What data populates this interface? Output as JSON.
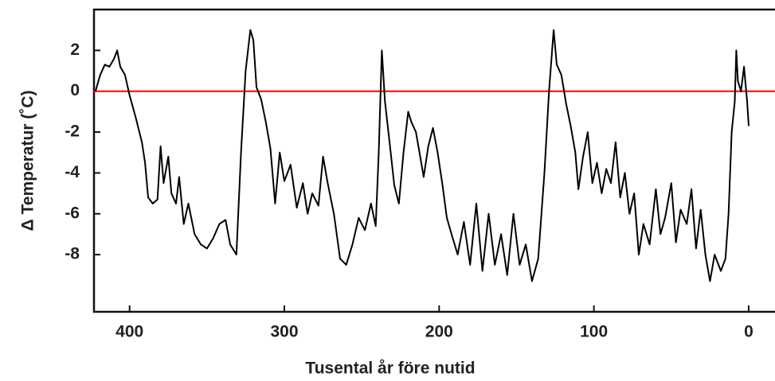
{
  "chart_data": {
    "type": "line",
    "xlabel": "Tusental år före nutid",
    "ylabel": "Δ Temperatur  (˚C)",
    "xlim": [
      423,
      -17
    ],
    "ylim": [
      -10.8,
      4
    ],
    "xticks": [
      400,
      300,
      200,
      100,
      0
    ],
    "yticks": [
      2,
      0,
      -2,
      -4,
      -6,
      -8
    ],
    "reference_line": {
      "value": 0,
      "color": "#ff2a2a"
    },
    "series": [
      {
        "color": "#000000",
        "x": [
          422,
          419,
          416,
          413,
          410,
          408,
          406,
          403,
          400,
          396,
          392,
          390,
          388,
          385,
          382,
          380,
          378,
          375,
          373,
          370,
          368,
          365,
          362,
          358,
          354,
          350,
          346,
          342,
          338,
          335,
          331,
          328,
          325,
          322,
          320,
          318,
          315,
          312,
          309,
          306,
          303,
          300,
          296,
          292,
          288,
          285,
          282,
          278,
          275,
          272,
          268,
          264,
          260,
          256,
          252,
          248,
          244,
          241,
          239,
          237,
          235,
          232,
          229,
          226,
          223,
          220,
          218,
          215,
          212,
          210,
          207,
          204,
          201,
          198,
          195,
          192,
          188,
          184,
          180,
          176,
          172,
          168,
          164,
          160,
          156,
          152,
          148,
          144,
          140,
          136,
          132,
          129,
          126,
          124,
          121,
          118,
          115,
          112,
          110,
          107,
          104,
          101,
          98,
          95,
          92,
          89,
          86,
          83,
          80,
          77,
          74,
          71,
          68,
          64,
          60,
          57,
          54,
          50,
          47,
          44,
          40,
          37,
          34,
          31,
          28,
          25,
          22,
          18,
          15,
          13,
          11,
          9,
          8,
          7,
          5,
          3,
          1,
          0
        ],
        "values": [
          0,
          0.8,
          1.3,
          1.2,
          1.6,
          2.0,
          1.2,
          0.8,
          -0.2,
          -1.3,
          -2.5,
          -3.5,
          -5.2,
          -5.5,
          -5.3,
          -2.7,
          -4.5,
          -3.2,
          -5,
          -5.5,
          -4.2,
          -6.5,
          -5.5,
          -7,
          -7.5,
          -7.7,
          -7.2,
          -6.5,
          -6.3,
          -7.5,
          -8.0,
          -3,
          1,
          3.0,
          2.5,
          0.2,
          -0.4,
          -1.5,
          -2.8,
          -5.5,
          -3.0,
          -4.4,
          -3.6,
          -5.7,
          -4.5,
          -6.0,
          -5.0,
          -5.6,
          -3.2,
          -4.5,
          -6.0,
          -8.2,
          -8.5,
          -7.5,
          -6.2,
          -6.8,
          -5.5,
          -6.6,
          -3,
          2,
          -0.5,
          -2.5,
          -4.6,
          -5.5,
          -3,
          -1,
          -1.5,
          -2,
          -3.3,
          -4.2,
          -2.7,
          -1.8,
          -3.0,
          -4.5,
          -6.2,
          -7.0,
          -8.0,
          -6.4,
          -8.5,
          -5.5,
          -8.8,
          -6,
          -8.5,
          -7,
          -9,
          -6,
          -8.5,
          -7.5,
          -9.3,
          -8.2,
          -4,
          0,
          3.0,
          1.3,
          0.8,
          -0.6,
          -1.7,
          -3,
          -4.8,
          -3.2,
          -2.0,
          -4.5,
          -3.5,
          -5.0,
          -3.8,
          -4.5,
          -2.5,
          -5.2,
          -4.0,
          -6.0,
          -5.0,
          -8,
          -6.5,
          -7.5,
          -4.8,
          -7,
          -6.2,
          -4.5,
          -7.4,
          -5.8,
          -6.5,
          -4.8,
          -7.7,
          -5.8,
          -8.0,
          -9.3,
          -8.0,
          -8.8,
          -8.2,
          -6,
          -2,
          -0.5,
          2.0,
          0.5,
          0.0,
          1.2,
          -0.5,
          -1.7
        ]
      }
    ]
  }
}
